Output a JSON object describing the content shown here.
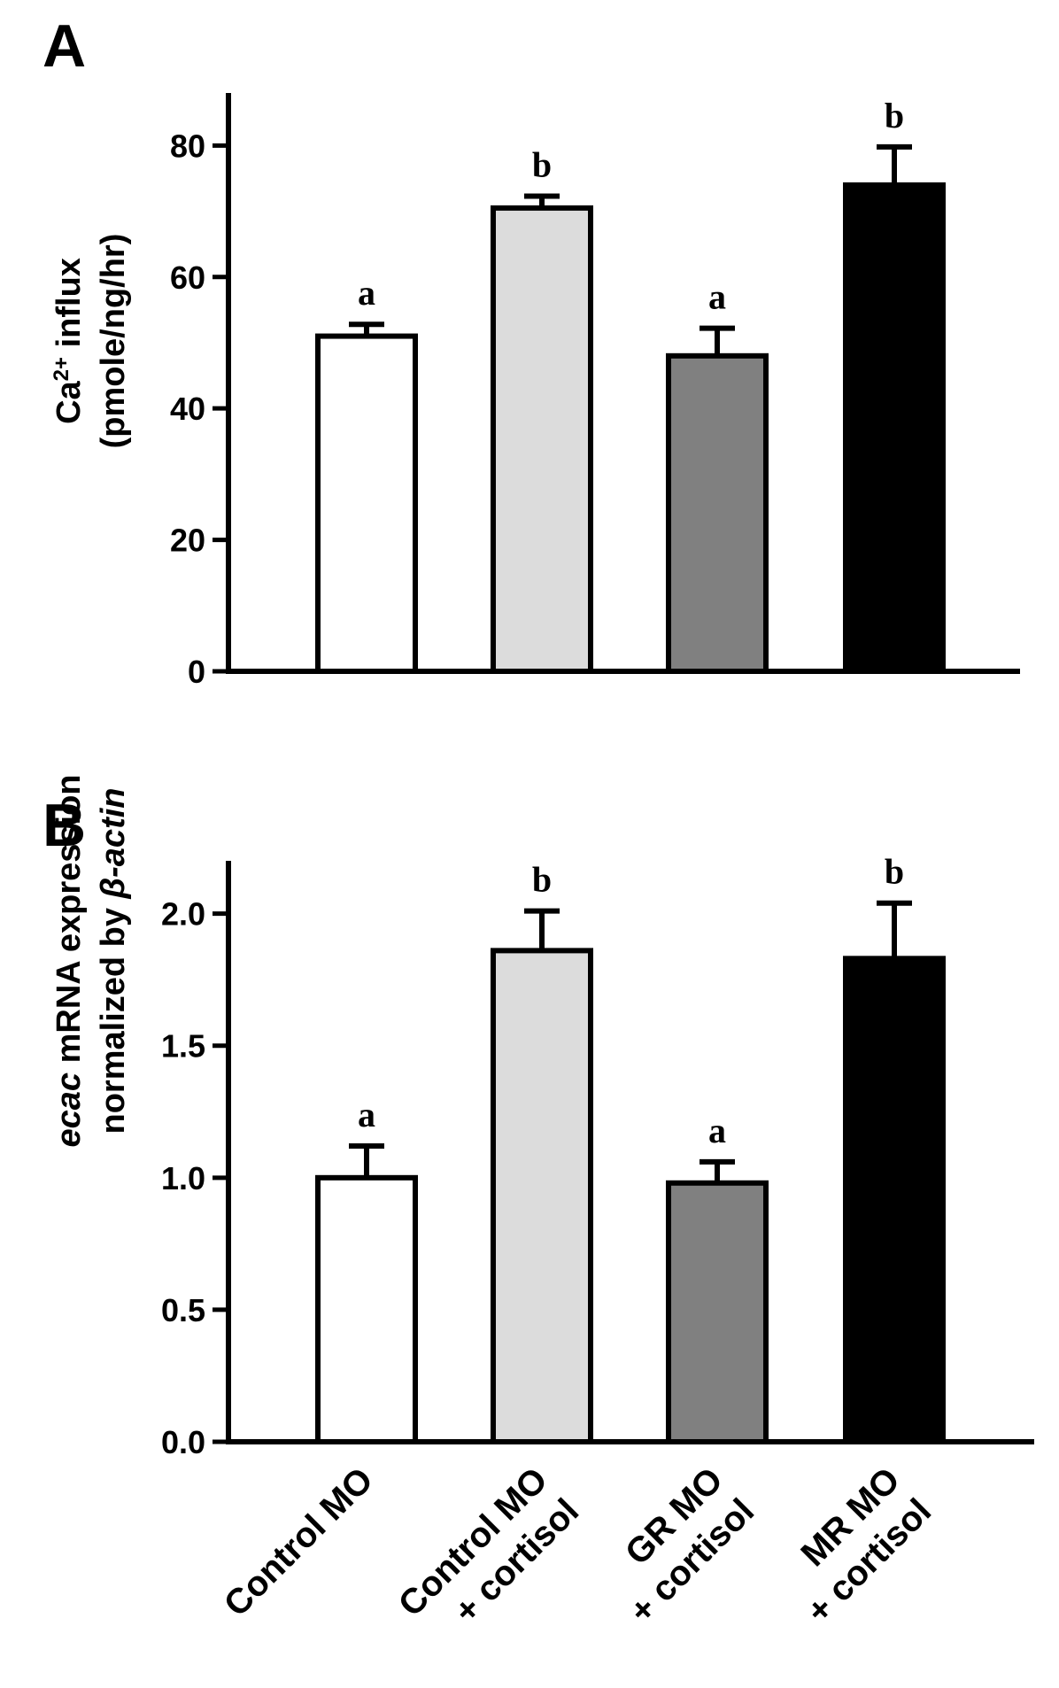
{
  "chart_data": [
    {
      "panel_label": "A",
      "type": "bar",
      "categories": [
        "Control MO",
        "Control MO\n+ cortisol",
        "GR MO\n+ cortisol",
        "MR MO\n+ cortisol"
      ],
      "values": [
        51,
        70.5,
        48,
        74
      ],
      "errors": [
        1.8,
        1.8,
        4.2,
        5.8
      ],
      "letters": [
        "a",
        "b",
        "a",
        "b"
      ],
      "colors": [
        "#ffffff",
        "#dcdcdc",
        "#808080",
        "#000000"
      ],
      "ylabel_main": "Ca",
      "ylabel_sup": "2+",
      "ylabel_rest": " influx",
      "ylabel_line2": "(pmole/ng/hr)",
      "ylim": [
        0,
        88
      ],
      "yticks": [
        "0",
        "20",
        "40",
        "60",
        "80"
      ],
      "ytick_values": [
        0,
        20,
        40,
        60,
        80
      ]
    },
    {
      "panel_label": "B",
      "type": "bar",
      "categories": [
        "Control MO",
        "Control MO\n+ cortisol",
        "GR MO\n+ cortisol",
        "MR MO\n+ cortisol"
      ],
      "values": [
        1.0,
        1.86,
        0.98,
        1.83
      ],
      "errors": [
        0.12,
        0.15,
        0.08,
        0.21
      ],
      "letters": [
        "a",
        "b",
        "a",
        "b"
      ],
      "colors": [
        "#ffffff",
        "#dcdcdc",
        "#808080",
        "#000000"
      ],
      "ylabel_italic": "ecac",
      "ylabel_rest": " mRNA expression",
      "ylabel_line2_prefix": "normalized by ",
      "ylabel_line2_italic": "β-actin",
      "ylim": [
        0,
        2.2
      ],
      "yticks": [
        "0.0",
        "0.5",
        "1.0",
        "1.5",
        "2.0"
      ],
      "ytick_values": [
        0,
        0.5,
        1.0,
        1.5,
        2.0
      ]
    }
  ]
}
